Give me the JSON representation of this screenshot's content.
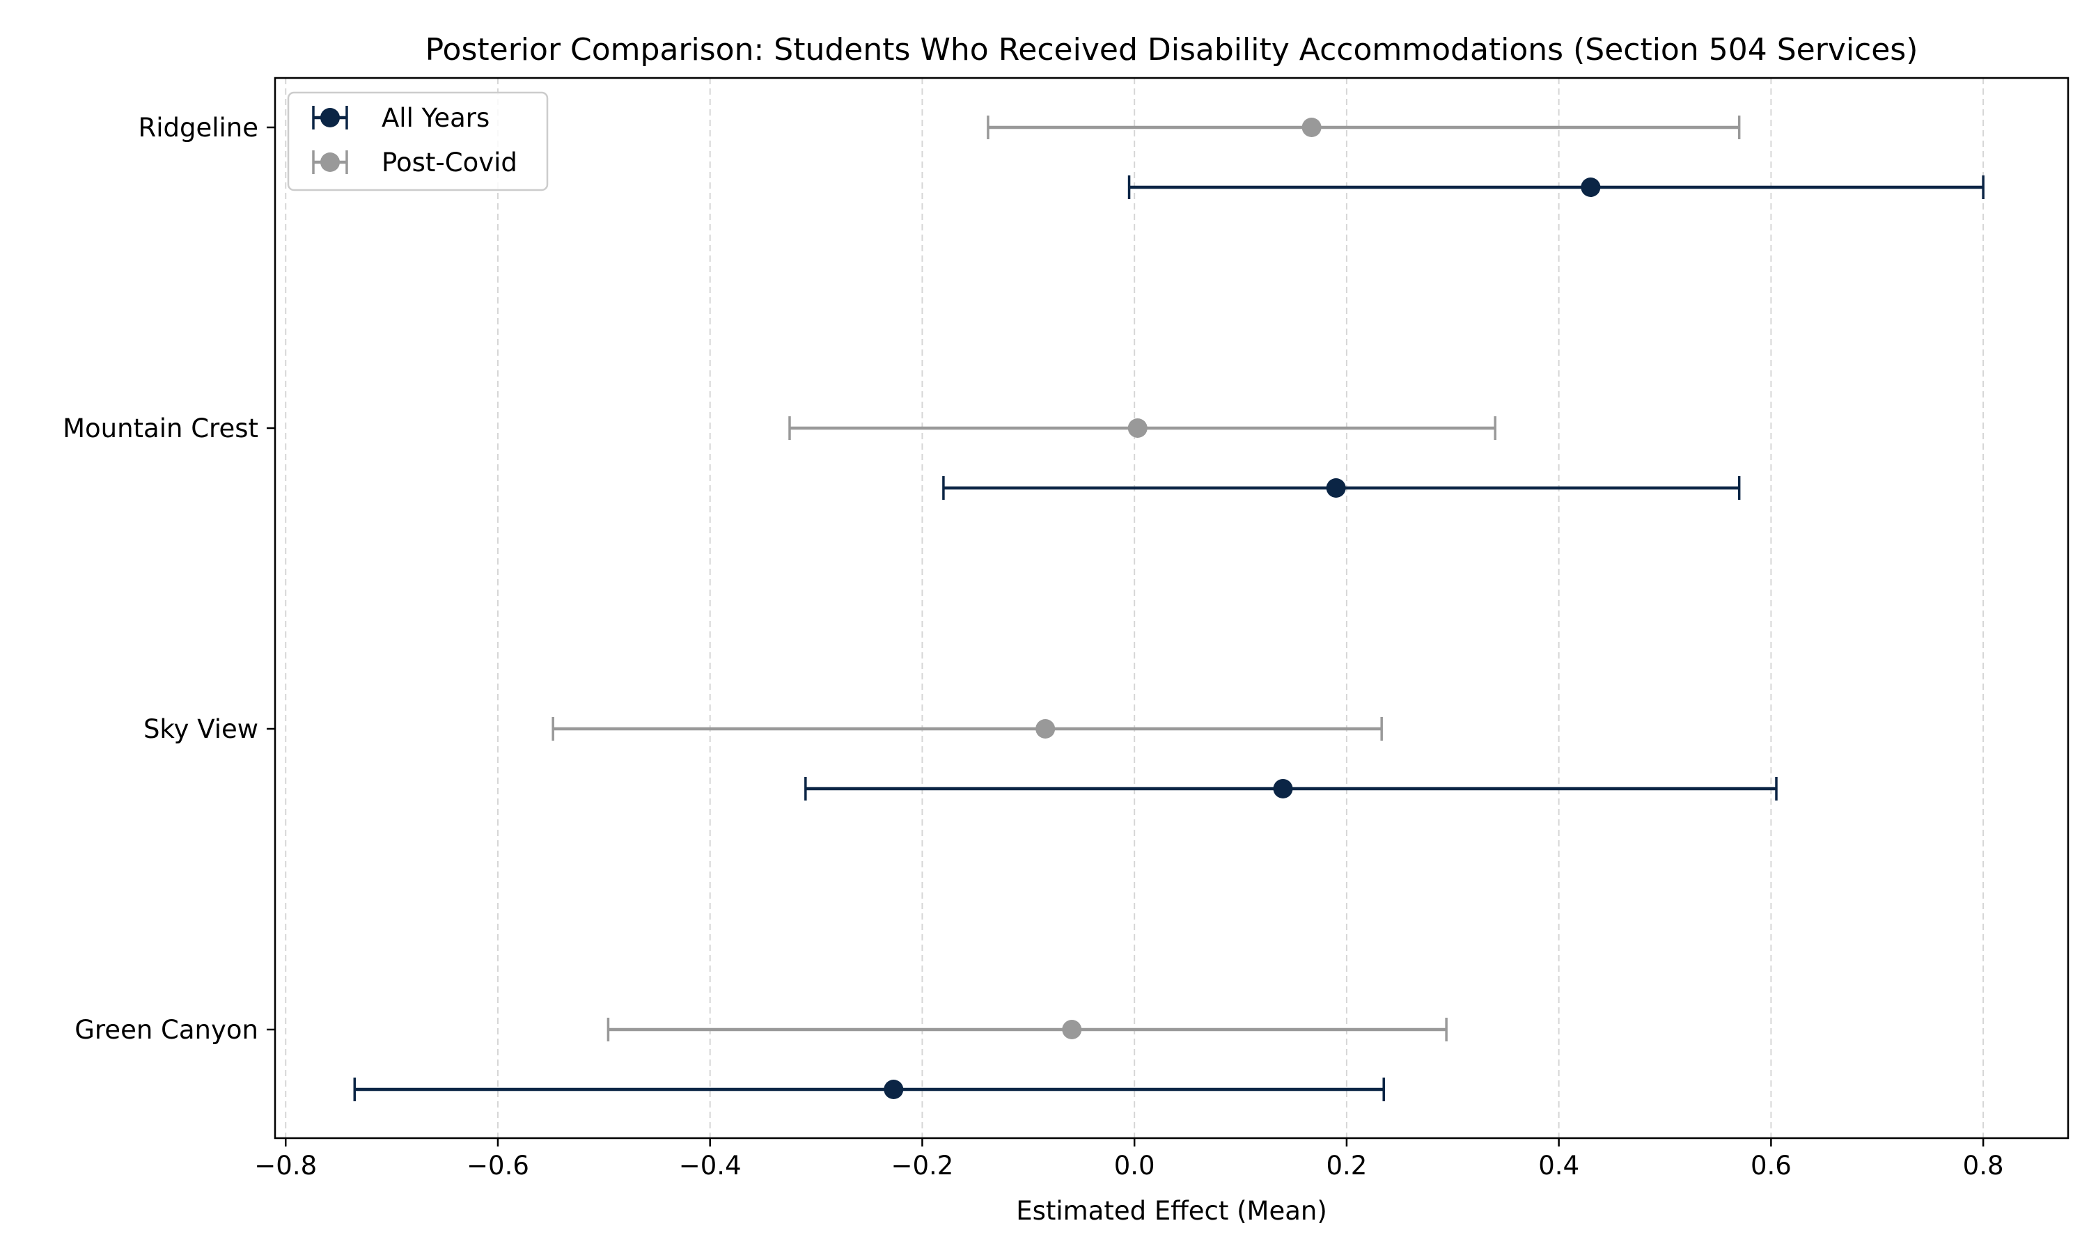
{
  "chart_data": {
    "type": "errorbar",
    "title": "Posterior Comparison: Students Who Received Disability Accommodations (Section 504 Services)",
    "xlabel": "Estimated Effect (Mean)",
    "ylabel": "",
    "xlim": [
      -0.81,
      0.88
    ],
    "xticks": [
      -0.8,
      -0.6,
      -0.4,
      -0.2,
      0.0,
      0.2,
      0.4,
      0.6,
      0.8
    ],
    "xtick_labels": [
      "−0.8",
      "−0.6",
      "−0.4",
      "−0.2",
      "0.0",
      "0.2",
      "0.4",
      "0.6",
      "0.8"
    ],
    "grid": {
      "x": true,
      "y": false,
      "style": "dashed"
    },
    "legend_position": "top-left",
    "categories": [
      "Ridgeline",
      "Mountain Crest",
      "Sky View",
      "Green Canyon"
    ],
    "series": [
      {
        "name": "All Years",
        "color": "#0b2545",
        "points": [
          {
            "category": "Ridgeline",
            "mean": 0.43,
            "lower": -0.005,
            "upper": 0.8
          },
          {
            "category": "Mountain Crest",
            "mean": 0.19,
            "lower": -0.18,
            "upper": 0.57
          },
          {
            "category": "Sky View",
            "mean": 0.14,
            "lower": -0.31,
            "upper": 0.605
          },
          {
            "category": "Green Canyon",
            "mean": -0.227,
            "lower": -0.735,
            "upper": 0.235
          }
        ]
      },
      {
        "name": "Post-Covid",
        "color": "#999999",
        "points": [
          {
            "category": "Ridgeline",
            "mean": 0.167,
            "lower": -0.138,
            "upper": 0.57
          },
          {
            "category": "Mountain Crest",
            "mean": 0.003,
            "lower": -0.325,
            "upper": 0.34
          },
          {
            "category": "Sky View",
            "mean": -0.084,
            "lower": -0.548,
            "upper": 0.233
          },
          {
            "category": "Green Canyon",
            "mean": -0.059,
            "lower": -0.496,
            "upper": 0.294
          }
        ]
      }
    ]
  }
}
